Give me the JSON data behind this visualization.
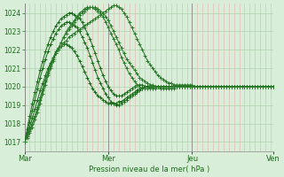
{
  "xlabel": "Pression niveau de la mer( hPa )",
  "background_color": "#d8eed8",
  "plot_background": "#d8eed8",
  "grid_color_h": "#b0d0b0",
  "grid_color_v": "#e8b0b0",
  "ylim": [
    1016.5,
    1024.5
  ],
  "yticks": [
    1017,
    1018,
    1019,
    1020,
    1021,
    1022,
    1023,
    1024
  ],
  "x_day_labels": [
    "Mar",
    "Mer",
    "Jeu",
    "Ven"
  ],
  "line_colors": [
    "#1a6b1a",
    "#1a6b1a",
    "#1a6b1a",
    "#2a7a2a",
    "#2a7a2a",
    "#2a7a2a"
  ],
  "series": [
    [
      1017.0,
      1017.4,
      1017.8,
      1018.3,
      1018.8,
      1019.3,
      1019.8,
      1020.2,
      1020.6,
      1021.0,
      1021.3,
      1021.6,
      1021.9,
      1022.1,
      1022.2,
      1022.3,
      1022.3,
      1022.2,
      1022.1,
      1021.9,
      1021.7,
      1021.4,
      1021.1,
      1020.8,
      1020.5,
      1020.2,
      1019.9,
      1019.7,
      1019.5,
      1019.4,
      1019.3,
      1019.2,
      1019.1,
      1019.1,
      1019.1,
      1019.1,
      1019.2,
      1019.2,
      1019.3,
      1019.4,
      1019.5,
      1019.6,
      1019.7,
      1019.8,
      1019.9,
      1019.9,
      1020.0,
      1020.0,
      1020.0,
      1020.0,
      1020.0,
      1020.0,
      1019.9,
      1019.9,
      1019.9,
      1019.9,
      1019.9,
      1019.9,
      1020.0,
      1020.0,
      1020.0,
      1020.0,
      1020.0,
      1020.0,
      1020.0,
      1020.0,
      1020.0,
      1020.0,
      1020.0,
      1020.0,
      1020.0,
      1020.0,
      1020.0,
      1020.0,
      1020.0,
      1020.0,
      1020.0,
      1020.0,
      1020.0,
      1020.0,
      1020.0,
      1020.0,
      1020.0,
      1020.0,
      1020.0,
      1020.0,
      1020.0,
      1020.0,
      1020.0,
      1020.0,
      1020.0,
      1020.0,
      1020.0,
      1020.0,
      1020.0,
      1020.0
    ],
    [
      1017.0,
      1017.5,
      1018.1,
      1018.7,
      1019.3,
      1019.9,
      1020.5,
      1021.0,
      1021.5,
      1021.9,
      1022.3,
      1022.6,
      1022.9,
      1023.1,
      1023.3,
      1023.4,
      1023.5,
      1023.5,
      1023.4,
      1023.3,
      1023.2,
      1023.0,
      1022.7,
      1022.4,
      1022.1,
      1021.7,
      1021.3,
      1020.9,
      1020.5,
      1020.2,
      1019.9,
      1019.6,
      1019.4,
      1019.2,
      1019.1,
      1019.0,
      1019.0,
      1019.1,
      1019.2,
      1019.3,
      1019.4,
      1019.5,
      1019.6,
      1019.7,
      1019.8,
      1019.9,
      1020.0,
      1020.0,
      1020.0,
      1020.0,
      1020.0,
      1020.0,
      1020.0,
      1020.0,
      1020.0,
      1020.0,
      1020.0,
      1020.0,
      1020.0,
      1020.0,
      1020.0,
      1020.0,
      1020.0,
      1020.0,
      1020.0,
      1020.0,
      1020.0,
      1020.0,
      1020.0,
      1020.0,
      1020.0,
      1020.0,
      1020.0,
      1020.0,
      1020.0,
      1020.0,
      1020.0,
      1020.0,
      1020.0,
      1020.0,
      1020.0,
      1020.0,
      1020.0,
      1020.0,
      1020.0,
      1020.0,
      1020.0,
      1020.0,
      1020.0,
      1020.0,
      1020.0,
      1020.0,
      1020.0,
      1020.0,
      1020.0,
      1020.0
    ],
    [
      1017.0,
      1017.7,
      1018.4,
      1019.1,
      1019.7,
      1020.3,
      1020.9,
      1021.4,
      1021.9,
      1022.3,
      1022.7,
      1023.0,
      1023.3,
      1023.5,
      1023.7,
      1023.8,
      1023.9,
      1024.0,
      1024.0,
      1023.9,
      1023.8,
      1023.7,
      1023.5,
      1023.2,
      1022.9,
      1022.6,
      1022.2,
      1021.8,
      1021.4,
      1021.0,
      1020.6,
      1020.3,
      1020.0,
      1019.8,
      1019.6,
      1019.5,
      1019.5,
      1019.5,
      1019.6,
      1019.7,
      1019.8,
      1019.9,
      1020.0,
      1020.1,
      1020.1,
      1020.1,
      1020.0,
      1020.0,
      1019.9,
      1019.9,
      1019.9,
      1020.0,
      1020.0,
      1020.0,
      1020.0,
      1020.0,
      1020.0,
      1020.0,
      1020.0,
      1020.0,
      1020.0,
      1020.0,
      1020.0,
      1020.0,
      1020.0,
      1020.0,
      1020.0,
      1020.0,
      1020.0,
      1020.0,
      1020.0,
      1020.0,
      1020.0,
      1020.0,
      1020.0,
      1020.0,
      1020.0,
      1020.0,
      1020.0,
      1020.0,
      1020.0,
      1020.0,
      1020.0,
      1020.0,
      1020.0,
      1020.0,
      1020.0,
      1020.0,
      1020.0,
      1020.0,
      1020.0,
      1020.0,
      1020.0,
      1020.0,
      1020.0,
      1020.0
    ],
    [
      1017.0,
      1017.3,
      1017.6,
      1018.0,
      1018.4,
      1018.9,
      1019.4,
      1019.9,
      1020.4,
      1020.8,
      1021.2,
      1021.5,
      1021.8,
      1022.0,
      1022.2,
      1022.4,
      1022.5,
      1022.7,
      1022.8,
      1022.9,
      1023.0,
      1023.1,
      1023.2,
      1023.3,
      1023.4,
      1023.5,
      1023.6,
      1023.7,
      1023.8,
      1023.9,
      1024.0,
      1024.1,
      1024.2,
      1024.3,
      1024.4,
      1024.4,
      1024.3,
      1024.2,
      1024.0,
      1023.8,
      1023.5,
      1023.2,
      1022.9,
      1022.6,
      1022.3,
      1022.0,
      1021.7,
      1021.4,
      1021.2,
      1021.0,
      1020.8,
      1020.6,
      1020.5,
      1020.4,
      1020.3,
      1020.2,
      1020.2,
      1020.1,
      1020.1,
      1020.1,
      1020.1,
      1020.1,
      1020.1,
      1020.1,
      1020.1,
      1020.0,
      1020.0,
      1020.0,
      1020.0,
      1020.0,
      1020.0,
      1020.0,
      1020.0,
      1020.0,
      1020.0,
      1020.0,
      1020.0,
      1020.0,
      1020.0,
      1020.0,
      1020.0,
      1020.0,
      1020.0,
      1020.0,
      1020.0,
      1020.0,
      1020.0,
      1020.0,
      1020.0,
      1020.0,
      1020.0,
      1020.0,
      1020.0,
      1020.0,
      1020.0,
      1020.0
    ],
    [
      1017.0,
      1017.3,
      1017.6,
      1018.0,
      1018.4,
      1018.8,
      1019.3,
      1019.8,
      1020.3,
      1020.7,
      1021.1,
      1021.5,
      1021.8,
      1022.1,
      1022.4,
      1022.7,
      1022.9,
      1023.1,
      1023.3,
      1023.5,
      1023.7,
      1023.9,
      1024.0,
      1024.1,
      1024.2,
      1024.3,
      1024.3,
      1024.3,
      1024.2,
      1024.1,
      1024.0,
      1023.8,
      1023.6,
      1023.3,
      1023.0,
      1022.7,
      1022.4,
      1022.1,
      1021.8,
      1021.5,
      1021.3,
      1021.1,
      1020.9,
      1020.7,
      1020.5,
      1020.4,
      1020.3,
      1020.2,
      1020.1,
      1020.1,
      1020.0,
      1020.0,
      1020.0,
      1020.0,
      1020.0,
      1020.0,
      1020.0,
      1020.0,
      1020.0,
      1020.0,
      1020.0,
      1020.0,
      1020.0,
      1020.0,
      1020.0,
      1020.0,
      1020.0,
      1020.0,
      1020.0,
      1020.0,
      1020.0,
      1020.0,
      1020.0,
      1020.0,
      1020.0,
      1020.0,
      1020.0,
      1020.0,
      1020.0,
      1020.0,
      1020.0,
      1020.0,
      1020.0,
      1020.0,
      1020.0,
      1020.0,
      1020.0,
      1020.0,
      1020.0,
      1020.0,
      1020.0,
      1020.0,
      1020.0,
      1020.0,
      1020.0,
      1020.0
    ],
    [
      1017.0,
      1017.2,
      1017.5,
      1017.8,
      1018.2,
      1018.6,
      1019.1,
      1019.6,
      1020.1,
      1020.6,
      1021.0,
      1021.4,
      1021.8,
      1022.1,
      1022.4,
      1022.7,
      1023.0,
      1023.2,
      1023.4,
      1023.6,
      1023.8,
      1024.0,
      1024.1,
      1024.2,
      1024.3,
      1024.3,
      1024.3,
      1024.2,
      1024.1,
      1024.0,
      1023.8,
      1023.5,
      1023.2,
      1022.9,
      1022.6,
      1022.3,
      1022.0,
      1021.6,
      1021.3,
      1021.0,
      1020.7,
      1020.5,
      1020.3,
      1020.1,
      1020.0,
      1019.9,
      1019.9,
      1019.9,
      1019.9,
      1019.9,
      1020.0,
      1020.0,
      1020.0,
      1020.0,
      1020.0,
      1020.0,
      1020.0,
      1020.0,
      1020.0,
      1020.0,
      1020.0,
      1020.0,
      1020.0,
      1020.0,
      1020.0,
      1020.0,
      1020.0,
      1020.0,
      1020.0,
      1020.0,
      1020.0,
      1020.0,
      1020.0,
      1020.0,
      1020.0,
      1020.0,
      1020.0,
      1020.0,
      1020.0,
      1020.0,
      1020.0,
      1020.0,
      1020.0,
      1020.0,
      1020.0,
      1020.0,
      1020.0,
      1020.0,
      1020.0,
      1020.0,
      1020.0,
      1020.0,
      1020.0,
      1020.0,
      1020.0,
      1020.0
    ]
  ]
}
